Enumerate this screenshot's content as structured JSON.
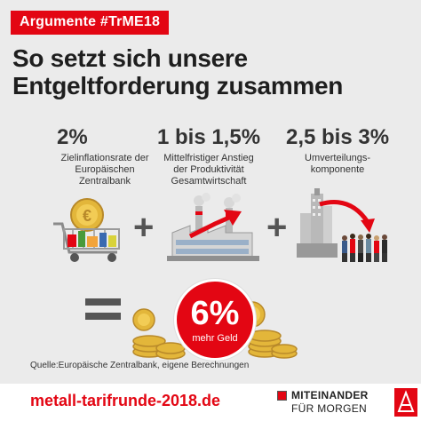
{
  "tag": "Argumente #TrME18",
  "headline": [
    "So setzt sich unsere",
    "Entgeltforderung zusammen"
  ],
  "components": [
    {
      "value": "2%",
      "desc": [
        "Zielinflationsrate der",
        "Europäischen",
        "Zentralbank"
      ]
    },
    {
      "value": "1 bis 1,5%",
      "desc": [
        "Mittelfristiger Anstieg",
        "der Produktivität",
        "Gesamtwirtschaft"
      ]
    },
    {
      "value": "2,5 bis 3%",
      "desc": [
        "Umverteilungs-",
        "komponente"
      ]
    }
  ],
  "result": {
    "value": "6%",
    "label": "mehr Geld"
  },
  "source": "Quelle:Europäische Zentralbank, eigene Berechnungen",
  "footer": {
    "url": "metall-tarifrunde-2018.de",
    "slogan_line1": "MITEINANDER",
    "slogan_line2": "FÜR MORGEN"
  },
  "colors": {
    "accent": "#e30613",
    "background": "#ebebeb"
  },
  "icons": [
    "shopping-cart-icon",
    "factory-icon",
    "city-people-icon",
    "coin-stack-icon",
    "ig-metall-logo-icon"
  ]
}
